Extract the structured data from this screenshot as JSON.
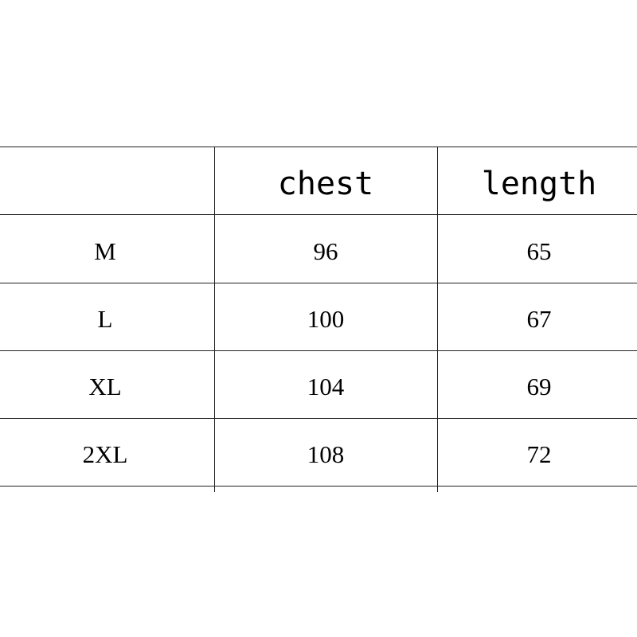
{
  "table": {
    "headers": [
      "",
      "chest",
      "length"
    ],
    "rows": [
      [
        "M",
        "96",
        "65"
      ],
      [
        "L",
        "100",
        "67"
      ],
      [
        "XL",
        "104",
        "69"
      ],
      [
        "2XL",
        "108",
        "72"
      ]
    ]
  }
}
